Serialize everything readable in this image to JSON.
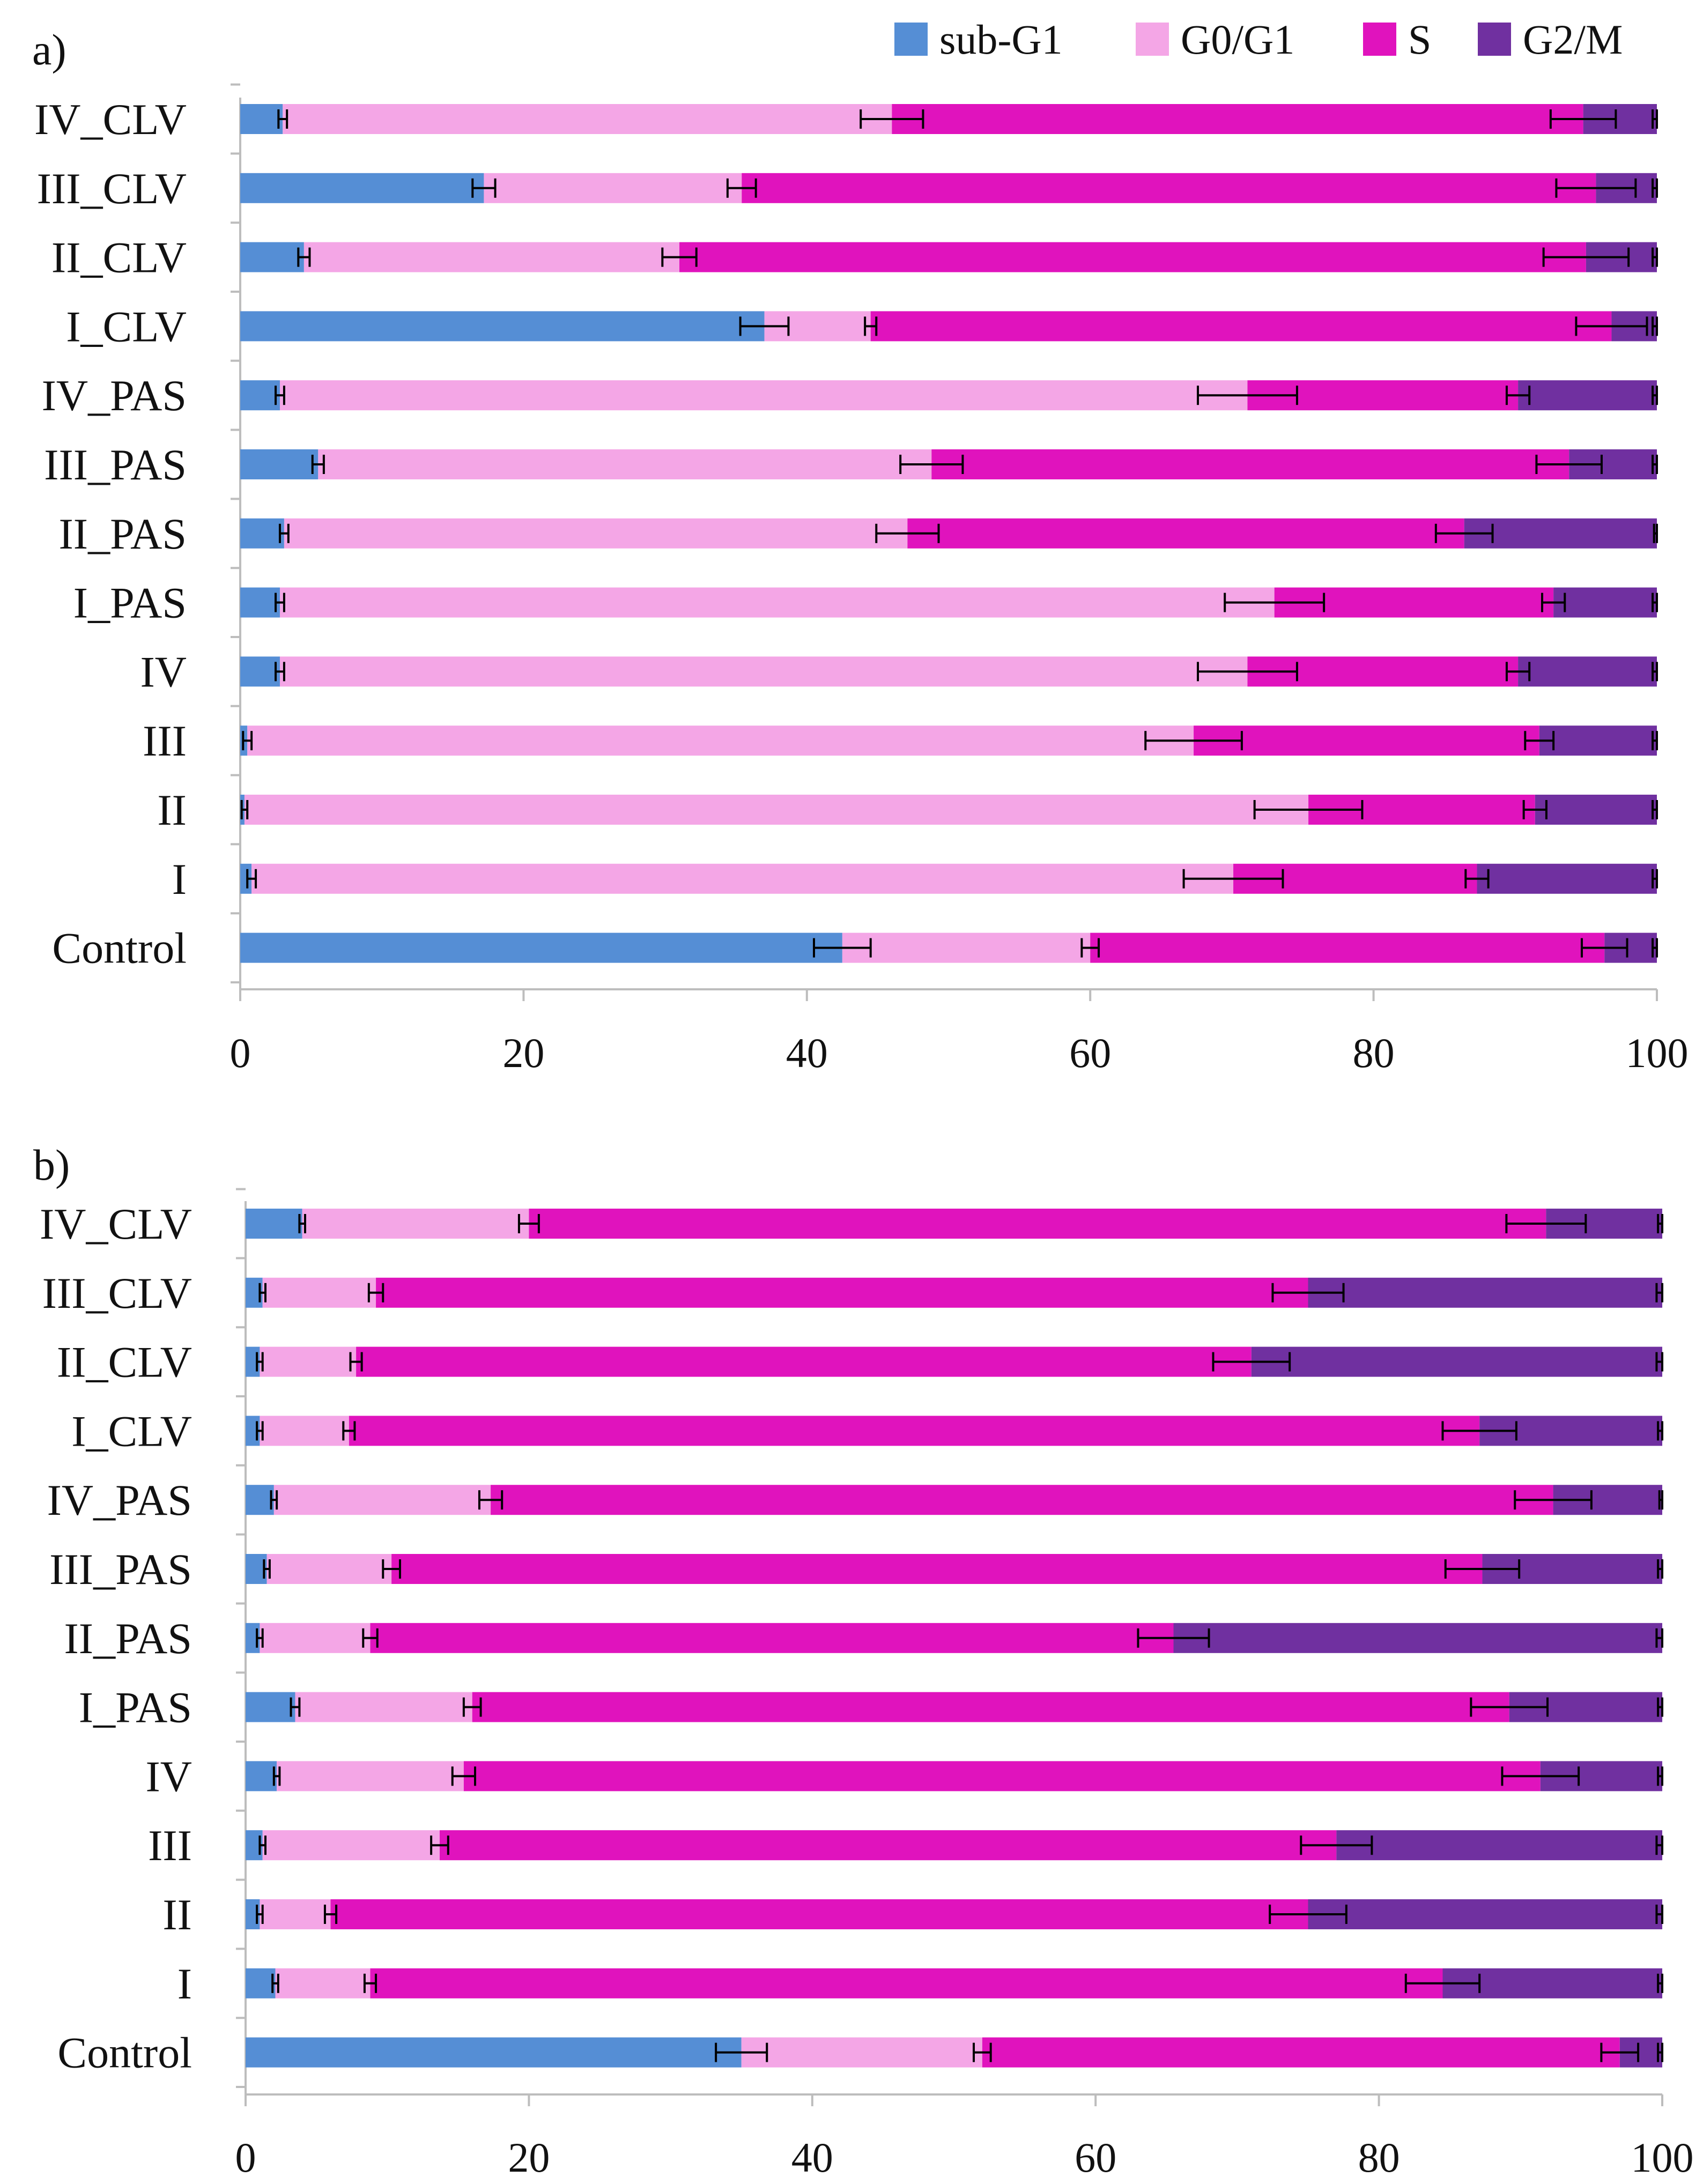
{
  "chart_data": [
    {
      "type": "bar",
      "orientation": "horizontal",
      "stacked": true,
      "panel_label": "a)",
      "categories": [
        "IV_CLV",
        "III_CLV",
        "II_CLV",
        "I_CLV",
        "IV_PAS",
        "III_PAS",
        "II_PAS",
        "I_PAS",
        "IV",
        "III",
        "II",
        "I",
        "Control"
      ],
      "series": [
        {
          "name": "sub-G1",
          "color": "#558ED5",
          "values": [
            3,
            17.2,
            4.5,
            37,
            2.8,
            5.5,
            3.1,
            2.8,
            2.8,
            0.5,
            0.3,
            0.8,
            42.5
          ]
        },
        {
          "name": "G0/G1",
          "color": "#F4A6E6",
          "values": [
            43,
            18.2,
            26.5,
            7.5,
            68.3,
            43.3,
            44,
            70.2,
            68.3,
            66.8,
            75.1,
            69.3,
            17.5
          ]
        },
        {
          "name": "S",
          "color": "#E013BD",
          "values": [
            48.8,
            60.3,
            64,
            52.3,
            19.1,
            45,
            39.3,
            19.7,
            19.1,
            24.4,
            16,
            17.2,
            36.3
          ]
        },
        {
          "name": "G2/M",
          "color": "#7030A0",
          "values": [
            5.2,
            4.3,
            5,
            3.2,
            9.8,
            6.2,
            13.6,
            7.3,
            9.8,
            8.3,
            8.6,
            12.7,
            3.7
          ]
        }
      ],
      "errors": {
        "sub-G1": [
          0.3,
          0.8,
          0.4,
          1.7,
          0.3,
          0.4,
          0.3,
          0.3,
          0.3,
          0.3,
          0.2,
          0.3,
          2.0
        ],
        "G0/G1": [
          2.2,
          1.0,
          1.2,
          0.4,
          3.5,
          2.2,
          2.2,
          3.5,
          3.5,
          3.4,
          3.8,
          3.5,
          0.6
        ],
        "S": [
          2.3,
          2.8,
          3.0,
          2.5,
          0.8,
          2.3,
          2.0,
          0.8,
          0.8,
          1.0,
          0.8,
          0.8,
          1.6
        ],
        "G2/M": [
          0.3,
          0.3,
          0.3,
          0.3,
          0.3,
          0.3,
          0.2,
          0.3,
          0.3,
          0.3,
          0.3,
          0.3,
          0.3
        ]
      },
      "xlim": [
        0,
        100
      ],
      "xticks": [
        0,
        20,
        40,
        60,
        80,
        100
      ]
    },
    {
      "type": "bar",
      "orientation": "horizontal",
      "stacked": true,
      "panel_label": "b)",
      "categories": [
        "IV_CLV",
        "III_CLV",
        "II_CLV",
        "I_CLV",
        "IV_PAS",
        "III_PAS",
        "II_PAS",
        "I_PAS",
        "IV",
        "III",
        "II",
        "I",
        "Control"
      ],
      "series": [
        {
          "name": "sub-G1",
          "color": "#558ED5",
          "values": [
            4,
            1.2,
            1,
            1,
            2,
            1.5,
            1,
            3.5,
            2.2,
            1.2,
            1,
            2.1,
            35
          ]
        },
        {
          "name": "G0/G1",
          "color": "#F4A6E6",
          "values": [
            16,
            8,
            6.8,
            6.3,
            15.3,
            8.8,
            7.8,
            12.5,
            13.2,
            12.5,
            5,
            6.7,
            17
          ]
        },
        {
          "name": "S",
          "color": "#E013BD",
          "values": [
            71.8,
            65.8,
            63.2,
            79.8,
            75,
            77,
            56.7,
            73.2,
            76,
            63.3,
            69,
            75.7,
            45
          ]
        },
        {
          "name": "G2/M",
          "color": "#7030A0",
          "values": [
            8.2,
            25,
            29,
            12.9,
            7.7,
            12.7,
            34.5,
            10.8,
            8.6,
            23,
            25,
            15.5,
            3
          ]
        }
      ],
      "errors": {
        "sub-G1": [
          0.2,
          0.2,
          0.2,
          0.2,
          0.2,
          0.2,
          0.2,
          0.3,
          0.2,
          0.2,
          0.2,
          0.2,
          1.8
        ],
        "G0/G1": [
          0.7,
          0.5,
          0.4,
          0.4,
          0.8,
          0.6,
          0.5,
          0.6,
          0.8,
          0.6,
          0.4,
          0.4,
          0.6
        ],
        "S": [
          2.8,
          2.5,
          2.7,
          2.6,
          2.7,
          2.6,
          2.5,
          2.7,
          2.7,
          2.5,
          2.7,
          2.6,
          1.3
        ],
        "G2/M": [
          0.3,
          0.4,
          0.4,
          0.3,
          0.2,
          0.3,
          0.4,
          0.3,
          0.3,
          0.4,
          0.4,
          0.3,
          0.3
        ]
      },
      "xlim": [
        0,
        100
      ],
      "xticks": [
        0,
        20,
        40,
        60,
        80,
        100
      ]
    }
  ],
  "legend": [
    {
      "name": "sub-G1",
      "color": "#558ED5"
    },
    {
      "name": "G0/G1",
      "color": "#F4A6E6"
    },
    {
      "name": "S",
      "color": "#E013BD"
    },
    {
      "name": "G2/M",
      "color": "#7030A0"
    }
  ],
  "legend_position": "top-right"
}
